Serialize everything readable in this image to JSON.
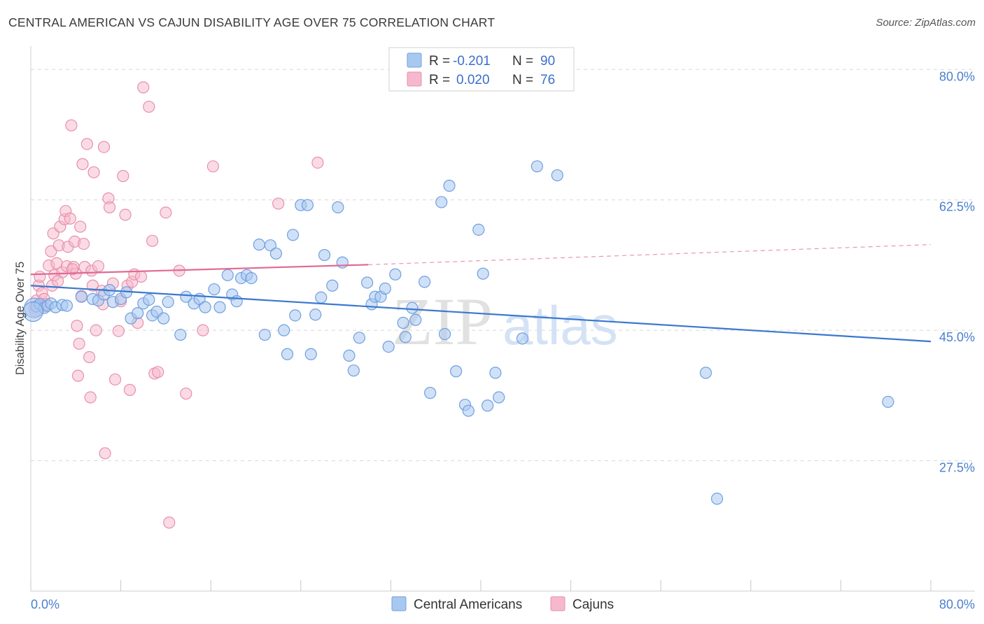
{
  "title": "CENTRAL AMERICAN VS CAJUN DISABILITY AGE OVER 75 CORRELATION CHART",
  "source": "Source: ZipAtlas.com",
  "watermark": {
    "zip": "ZIP",
    "atlas": "atlas"
  },
  "colors": {
    "blue_fill": "#a9c8f0",
    "blue_stroke": "#6e9fe0",
    "blue_line": "#3a78d0",
    "pink_fill": "#f6b8cc",
    "pink_stroke": "#e890aa",
    "pink_line": "#e06a93",
    "grid": "#d7d7d7",
    "tick_text": "#4a7fcf"
  },
  "legend": {
    "rows": [
      {
        "r_label": "R =",
        "r_value": "-0.201",
        "n_label": "N =",
        "n_value": "90"
      },
      {
        "r_label": "R =",
        "r_value": "0.020",
        "n_label": "N =",
        "n_value": "76"
      }
    ]
  },
  "chart_data": {
    "type": "scatter",
    "title": "CENTRAL AMERICAN VS CAJUN DISABILITY AGE OVER 75 CORRELATION CHART",
    "xlabel": "",
    "ylabel": "Disability Age Over 75",
    "xlim": [
      0,
      80
    ],
    "ylim": [
      10,
      82
    ],
    "x_tick_labels": [
      "0.0%",
      "80.0%"
    ],
    "y_ticks": [
      27.5,
      45.0,
      62.5,
      80.0
    ],
    "y_tick_labels": [
      "27.5%",
      "45.0%",
      "62.5%",
      "80.0%"
    ],
    "grid": true,
    "legend_position": "top-center",
    "series": [
      {
        "name": "Central Americans",
        "color": "#a9c8f0",
        "trend": {
          "x": [
            0,
            80
          ],
          "y": [
            51.0,
            43.5
          ],
          "style": "solid"
        },
        "points": [
          [
            0.3,
            48.0
          ],
          [
            0.5,
            48.2
          ],
          [
            0.8,
            48.5
          ],
          [
            1.2,
            48.0
          ],
          [
            1.5,
            48.3
          ],
          [
            1.8,
            48.6
          ],
          [
            2.2,
            48.1
          ],
          [
            2.8,
            48.4
          ],
          [
            3.2,
            48.3
          ],
          [
            4.5,
            49.5
          ],
          [
            5.5,
            49.2
          ],
          [
            6.0,
            49.0
          ],
          [
            6.5,
            49.8
          ],
          [
            7.0,
            50.4
          ],
          [
            7.3,
            48.8
          ],
          [
            8.0,
            49.2
          ],
          [
            8.5,
            50.1
          ],
          [
            8.9,
            46.6
          ],
          [
            9.5,
            47.3
          ],
          [
            10.0,
            48.6
          ],
          [
            10.5,
            49.1
          ],
          [
            10.8,
            47.0
          ],
          [
            11.2,
            47.5
          ],
          [
            11.8,
            46.6
          ],
          [
            12.2,
            48.8
          ],
          [
            13.3,
            44.4
          ],
          [
            13.8,
            49.5
          ],
          [
            14.5,
            48.6
          ],
          [
            15.0,
            49.2
          ],
          [
            15.5,
            48.1
          ],
          [
            16.3,
            50.5
          ],
          [
            16.8,
            48.1
          ],
          [
            17.5,
            52.4
          ],
          [
            17.9,
            49.8
          ],
          [
            18.3,
            48.9
          ],
          [
            18.7,
            52.0
          ],
          [
            19.2,
            52.4
          ],
          [
            19.6,
            52.0
          ],
          [
            20.3,
            56.5
          ],
          [
            20.8,
            44.4
          ],
          [
            21.3,
            56.4
          ],
          [
            21.8,
            55.3
          ],
          [
            22.5,
            45.0
          ],
          [
            22.8,
            41.8
          ],
          [
            23.3,
            57.8
          ],
          [
            23.5,
            47.0
          ],
          [
            24.0,
            61.8
          ],
          [
            24.6,
            61.8
          ],
          [
            24.9,
            41.8
          ],
          [
            25.3,
            47.1
          ],
          [
            25.8,
            49.4
          ],
          [
            26.1,
            55.1
          ],
          [
            26.8,
            51.0
          ],
          [
            27.3,
            61.5
          ],
          [
            27.7,
            54.1
          ],
          [
            28.3,
            41.6
          ],
          [
            28.7,
            39.6
          ],
          [
            29.2,
            44.0
          ],
          [
            29.9,
            51.4
          ],
          [
            30.3,
            48.5
          ],
          [
            30.6,
            49.5
          ],
          [
            31.1,
            49.5
          ],
          [
            31.5,
            50.6
          ],
          [
            31.8,
            42.8
          ],
          [
            32.4,
            52.5
          ],
          [
            33.1,
            46.0
          ],
          [
            33.3,
            44.1
          ],
          [
            33.9,
            48.0
          ],
          [
            34.2,
            46.4
          ],
          [
            35.0,
            51.5
          ],
          [
            35.5,
            36.6
          ],
          [
            36.5,
            62.2
          ],
          [
            36.8,
            44.5
          ],
          [
            37.2,
            64.4
          ],
          [
            37.8,
            39.5
          ],
          [
            38.6,
            35.0
          ],
          [
            38.9,
            34.2
          ],
          [
            39.8,
            58.5
          ],
          [
            40.2,
            52.6
          ],
          [
            40.6,
            34.9
          ],
          [
            41.3,
            39.3
          ],
          [
            41.6,
            36.0
          ],
          [
            43.0,
            78.0
          ],
          [
            43.7,
            43.9
          ],
          [
            45.0,
            67.0
          ],
          [
            46.8,
            65.8
          ],
          [
            60.0,
            39.3
          ],
          [
            61.0,
            22.4
          ],
          [
            76.2,
            35.4
          ],
          [
            0.2,
            47.5
          ]
        ]
      },
      {
        "name": "Cajuns",
        "color": "#f6b8cc",
        "trend": {
          "x": [
            0,
            30
          ],
          "y": [
            52.5,
            53.8
          ],
          "style": "solid",
          "extended_x": [
            30,
            80
          ],
          "extended_y": [
            53.8,
            56.5
          ],
          "extended_style": "dashed"
        },
        "points": [
          [
            0.3,
            48.0
          ],
          [
            0.5,
            49.0
          ],
          [
            0.7,
            51.0
          ],
          [
            0.8,
            52.2
          ],
          [
            1.0,
            50.0
          ],
          [
            1.2,
            49.2
          ],
          [
            1.4,
            48.5
          ],
          [
            1.6,
            53.7
          ],
          [
            1.8,
            55.6
          ],
          [
            1.9,
            51.0
          ],
          [
            2.0,
            58.0
          ],
          [
            2.1,
            52.4
          ],
          [
            2.3,
            54.0
          ],
          [
            2.5,
            56.4
          ],
          [
            2.6,
            58.9
          ],
          [
            2.8,
            52.8
          ],
          [
            3.0,
            59.9
          ],
          [
            3.1,
            61.0
          ],
          [
            3.2,
            53.6
          ],
          [
            3.3,
            56.2
          ],
          [
            3.5,
            60.0
          ],
          [
            3.6,
            72.5
          ],
          [
            3.8,
            53.5
          ],
          [
            3.9,
            56.9
          ],
          [
            4.0,
            52.6
          ],
          [
            4.1,
            45.6
          ],
          [
            4.2,
            38.9
          ],
          [
            4.3,
            43.2
          ],
          [
            4.4,
            58.9
          ],
          [
            4.5,
            49.6
          ],
          [
            4.6,
            67.3
          ],
          [
            4.7,
            56.6
          ],
          [
            4.8,
            53.5
          ],
          [
            5.0,
            70.0
          ],
          [
            5.2,
            41.4
          ],
          [
            5.3,
            36.0
          ],
          [
            5.4,
            53.0
          ],
          [
            5.5,
            51.0
          ],
          [
            5.6,
            66.2
          ],
          [
            5.8,
            45.0
          ],
          [
            6.0,
            53.6
          ],
          [
            6.3,
            50.3
          ],
          [
            6.4,
            48.5
          ],
          [
            6.5,
            69.6
          ],
          [
            6.6,
            28.5
          ],
          [
            6.9,
            62.7
          ],
          [
            7.0,
            61.5
          ],
          [
            7.3,
            51.3
          ],
          [
            7.5,
            38.4
          ],
          [
            7.8,
            44.9
          ],
          [
            8.0,
            48.9
          ],
          [
            8.2,
            65.7
          ],
          [
            8.4,
            60.5
          ],
          [
            8.6,
            51.0
          ],
          [
            8.8,
            37.0
          ],
          [
            9.0,
            51.5
          ],
          [
            9.2,
            52.5
          ],
          [
            9.5,
            46.0
          ],
          [
            9.8,
            52.2
          ],
          [
            10.0,
            77.6
          ],
          [
            10.5,
            75.0
          ],
          [
            10.8,
            57.0
          ],
          [
            11.0,
            39.2
          ],
          [
            11.3,
            39.4
          ],
          [
            12.0,
            60.8
          ],
          [
            12.3,
            19.2
          ],
          [
            13.2,
            53.0
          ],
          [
            13.8,
            36.5
          ],
          [
            15.3,
            45.0
          ],
          [
            16.2,
            67.0
          ],
          [
            22.0,
            62.0
          ],
          [
            25.5,
            67.5
          ],
          [
            0.4,
            47.6
          ],
          [
            1.1,
            48.2
          ],
          [
            2.4,
            51.6
          ],
          [
            3.7,
            53.2
          ]
        ]
      }
    ]
  }
}
